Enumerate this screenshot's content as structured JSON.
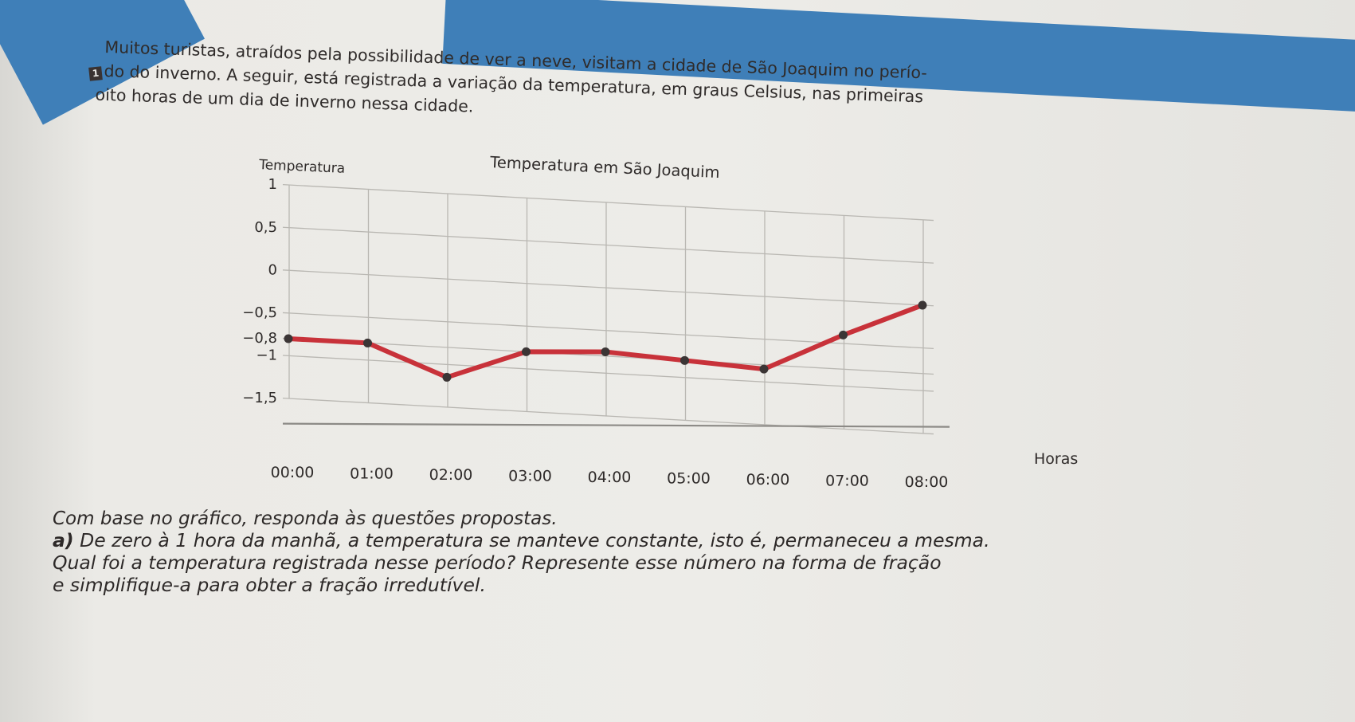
{
  "question_number": "1",
  "intro_lines": [
    "Muitos turistas, atraídos pela possibilidade de ver a neve, visitam a cidade de São Joaquim no perío-",
    "do do inverno. A seguir, está registrada a variação da temperatura, em graus Celsius, nas primeiras",
    "oito horas de um dia de inverno nessa cidade."
  ],
  "chart_data": {
    "type": "line",
    "title": "Temperatura em São Joaquim",
    "ylabel": "Temperatura",
    "xlabel": "Horas",
    "categories": [
      "00:00",
      "01:00",
      "02:00",
      "03:00",
      "04:00",
      "05:00",
      "06:00",
      "07:00",
      "08:00"
    ],
    "values": [
      -0.8,
      -0.8,
      -1.15,
      -0.8,
      -0.75,
      -0.8,
      -0.85,
      -0.4,
      0.0
    ],
    "ytick_labels": [
      "1",
      "0,5",
      "0",
      "−0,5",
      "−0,8",
      "−1",
      "−1,5"
    ],
    "ytick_values": [
      1,
      0.5,
      0,
      -0.5,
      -0.8,
      -1,
      -1.5
    ],
    "ylim": [
      -1.5,
      1
    ],
    "grid": true,
    "colors": {
      "line": "#c8323a",
      "marker": "#3b3535",
      "grid": "#b9b7b2"
    }
  },
  "instruction": "Com base no gráfico, responda às questões propostas.",
  "question_a": {
    "label": "a)",
    "lines": [
      "De zero à 1 hora da manhã, a temperatura se manteve constante, isto é, permaneceu a mesma.",
      "Qual foi a temperatura registrada nesse período? Represente esse número na forma de fração",
      "e simplifique-a para obter a fração irredutível."
    ]
  }
}
